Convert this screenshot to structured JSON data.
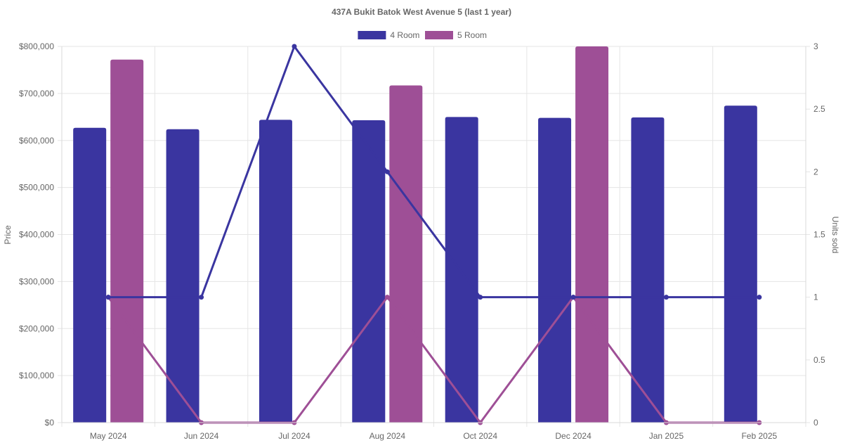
{
  "chart_data": {
    "type": "bar",
    "title": "437A Bukit Batok West Avenue 5 (last 1 year)",
    "categories": [
      "May 2024",
      "Jun 2024",
      "Jul 2024",
      "Aug 2024",
      "Oct 2024",
      "Dec 2024",
      "Jan 2025",
      "Feb 2025"
    ],
    "ylabel": "Price",
    "y2label": "Units sold",
    "ylim": [
      0,
      800000
    ],
    "y2lim": [
      0,
      3
    ],
    "yticks": [
      "$0",
      "$100,000",
      "$200,000",
      "$300,000",
      "$400,000",
      "$500,000",
      "$600,000",
      "$700,000",
      "$800,000"
    ],
    "y2ticks": [
      "0",
      "0.5",
      "1",
      "1.5",
      "2",
      "2.5",
      "3"
    ],
    "grid": true,
    "legend_position": "top-center",
    "series": [
      {
        "name": "4 Room",
        "color": "#3a35a0",
        "values": [
          627000,
          624000,
          644000,
          643000,
          650000,
          648000,
          649000,
          674000
        ],
        "units_sold": [
          1,
          1,
          3,
          2,
          1,
          1,
          1,
          1
        ]
      },
      {
        "name": "5 Room",
        "color": "#9e4f96",
        "values": [
          772000,
          null,
          null,
          717000,
          null,
          800000,
          null,
          null
        ],
        "units_sold": [
          1,
          0,
          0,
          1,
          0,
          1,
          0,
          0
        ]
      }
    ]
  }
}
